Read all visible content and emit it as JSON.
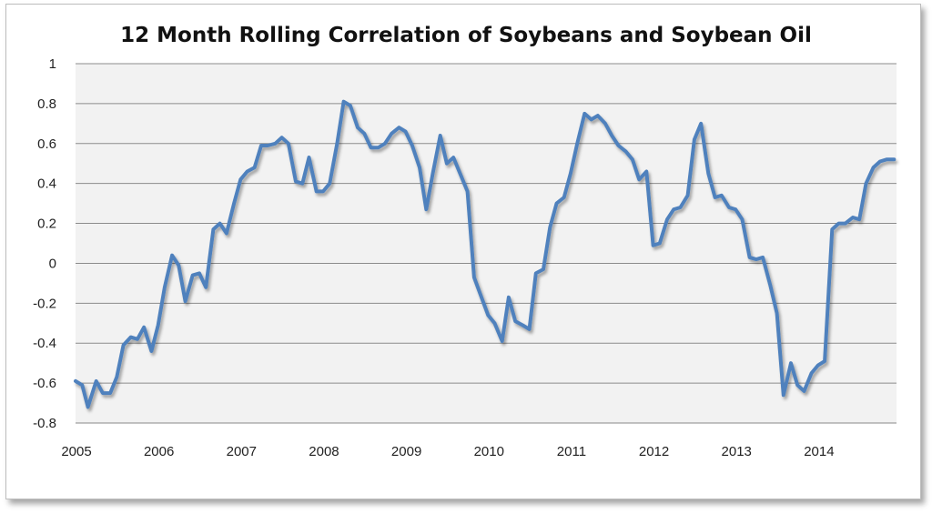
{
  "chart_data": {
    "type": "line",
    "title": "12 Month Rolling Correlation of Soybeans and Soybean Oil",
    "xlabel": "",
    "ylabel": "",
    "ylim": [
      -0.8,
      1
    ],
    "xlim": [
      2005,
      2014.95
    ],
    "grid": true,
    "y_ticks": [
      "1",
      "0.8",
      "0.6",
      "0.4",
      "0.2",
      "0",
      "-0.2",
      "-0.4",
      "-0.6",
      "-0.8"
    ],
    "x_ticks": [
      "2005",
      "2006",
      "2007",
      "2008",
      "2009",
      "2010",
      "2011",
      "2012",
      "2013",
      "2014"
    ],
    "line_color": "#4f81bd",
    "series": [
      {
        "x": [
          2005.0,
          2005.08,
          2005.15,
          2005.25,
          2005.33,
          2005.42,
          2005.5,
          2005.58,
          2005.67,
          2005.75,
          2005.83,
          2005.92,
          2006.0,
          2006.08,
          2006.17,
          2006.25,
          2006.33,
          2006.42,
          2006.5,
          2006.58,
          2006.67,
          2006.75,
          2006.83,
          2006.92,
          2007.0,
          2007.08,
          2007.17,
          2007.25,
          2007.33,
          2007.42,
          2007.5,
          2007.58,
          2007.67,
          2007.75,
          2007.83,
          2007.92,
          2008.0,
          2008.08,
          2008.17,
          2008.25,
          2008.33,
          2008.42,
          2008.5,
          2008.58,
          2008.67,
          2008.75,
          2008.83,
          2008.92,
          2009.0,
          2009.08,
          2009.17,
          2009.25,
          2009.33,
          2009.42,
          2009.5,
          2009.58,
          2009.67,
          2009.75,
          2009.83,
          2009.92,
          2010.0,
          2010.08,
          2010.17,
          2010.25,
          2010.33,
          2010.42,
          2010.5,
          2010.58,
          2010.67,
          2010.75,
          2010.83,
          2010.92,
          2011.0,
          2011.08,
          2011.17,
          2011.25,
          2011.33,
          2011.42,
          2011.5,
          2011.58,
          2011.67,
          2011.75,
          2011.83,
          2011.92,
          2012.0,
          2012.08,
          2012.17,
          2012.25,
          2012.33,
          2012.42,
          2012.5,
          2012.58,
          2012.67,
          2012.75,
          2012.83,
          2012.92,
          2013.0,
          2013.08,
          2013.17,
          2013.25,
          2013.33,
          2013.42,
          2013.5,
          2013.58,
          2013.67,
          2013.75,
          2013.83,
          2013.92,
          2014.0,
          2014.08,
          2014.17,
          2014.25,
          2014.33,
          2014.42,
          2014.5,
          2014.58,
          2014.67,
          2014.75,
          2014.83,
          2014.92
        ],
        "values": [
          -0.59,
          -0.61,
          -0.72,
          -0.59,
          -0.65,
          -0.65,
          -0.57,
          -0.41,
          -0.37,
          -0.38,
          -0.32,
          -0.44,
          -0.31,
          -0.12,
          0.04,
          -0.01,
          -0.19,
          -0.06,
          -0.05,
          -0.12,
          0.17,
          0.2,
          0.15,
          0.3,
          0.42,
          0.46,
          0.48,
          0.59,
          0.59,
          0.6,
          0.63,
          0.6,
          0.41,
          0.4,
          0.53,
          0.36,
          0.36,
          0.4,
          0.6,
          0.81,
          0.79,
          0.68,
          0.65,
          0.58,
          0.58,
          0.6,
          0.65,
          0.68,
          0.66,
          0.59,
          0.48,
          0.27,
          0.45,
          0.64,
          0.5,
          0.53,
          0.44,
          0.36,
          -0.07,
          -0.17,
          -0.26,
          -0.3,
          -0.39,
          -0.17,
          -0.29,
          -0.31,
          -0.33,
          -0.05,
          -0.03,
          0.18,
          0.3,
          0.33,
          0.45,
          0.6,
          0.75,
          0.72,
          0.74,
          0.7,
          0.64,
          0.59,
          0.56,
          0.52,
          0.42,
          0.46,
          0.09,
          0.1,
          0.22,
          0.27,
          0.28,
          0.34,
          0.62,
          0.7,
          0.45,
          0.33,
          0.34,
          0.28,
          0.27,
          0.22,
          0.03,
          0.02,
          0.03,
          -0.11,
          -0.25,
          -0.66,
          -0.5,
          -0.61,
          -0.64,
          -0.55,
          -0.51,
          -0.49,
          0.17,
          0.2,
          0.2,
          0.23,
          0.22,
          0.4,
          0.48,
          0.51,
          0.52,
          0.52
        ]
      }
    ]
  }
}
